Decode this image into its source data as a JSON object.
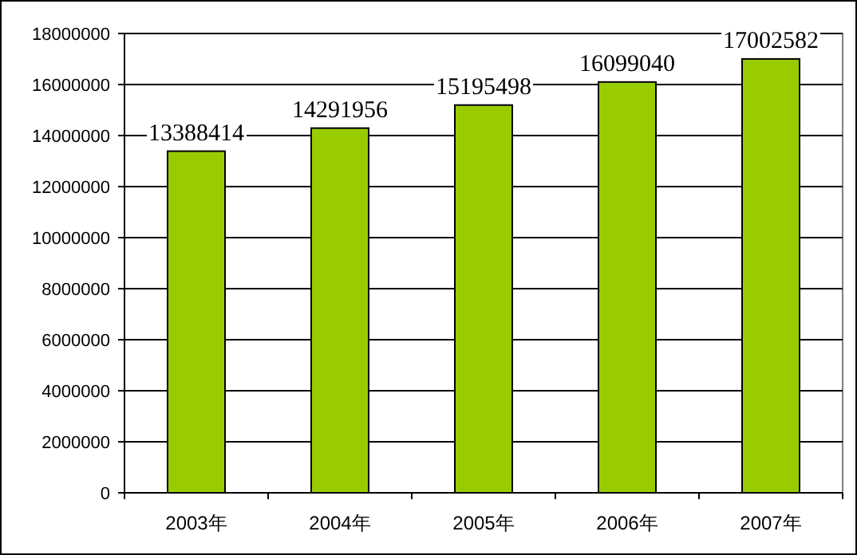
{
  "chart_data": {
    "type": "bar",
    "categories": [
      "2003年",
      "2004年",
      "2005年",
      "2006年",
      "2007年"
    ],
    "values": [
      13388414,
      14291956,
      15195498,
      16099040,
      17002582
    ],
    "color": "#99cc00",
    "ylim": [
      0,
      18000000
    ],
    "yticks": [
      0,
      2000000,
      4000000,
      6000000,
      8000000,
      10000000,
      12000000,
      14000000,
      16000000,
      18000000
    ],
    "grid": "y",
    "data_labels": true
  }
}
